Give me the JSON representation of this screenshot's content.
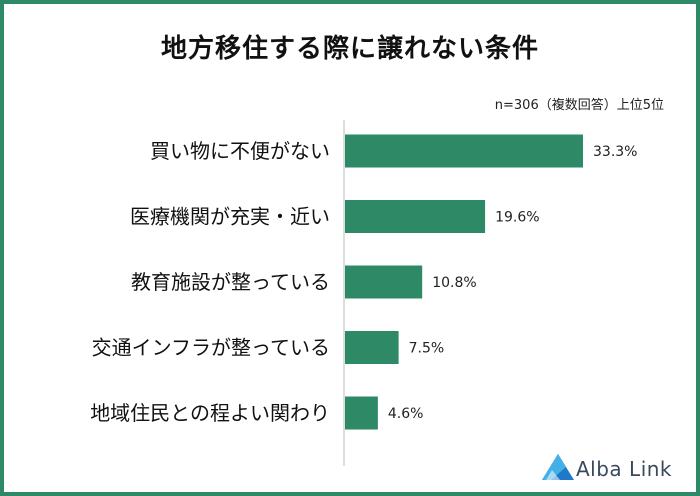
{
  "title": "地方移住する際に譲れない条件",
  "note": "n=306（複数回答）上位5位",
  "colors": {
    "bar": "#2e8a66",
    "frame": "#2e8a66",
    "axis": "#bbbbbb"
  },
  "chart_data": {
    "type": "bar",
    "orientation": "horizontal",
    "categories": [
      "買い物に不便がない",
      "医療機関が充実・近い",
      "教育施設が整っている",
      "交通インフラが整っている",
      "地域住民との程よい関わり"
    ],
    "values": [
      33.3,
      19.6,
      10.8,
      7.5,
      4.6
    ],
    "value_labels": [
      "33.3%",
      "19.6%",
      "10.8%",
      "7.5%",
      "4.6%"
    ],
    "unit": "%",
    "xlim": [
      0,
      40
    ],
    "grid": false,
    "legend": "none"
  },
  "brand": {
    "name": "Alba Link",
    "logo_icon": "alba-link-logo-icon"
  }
}
